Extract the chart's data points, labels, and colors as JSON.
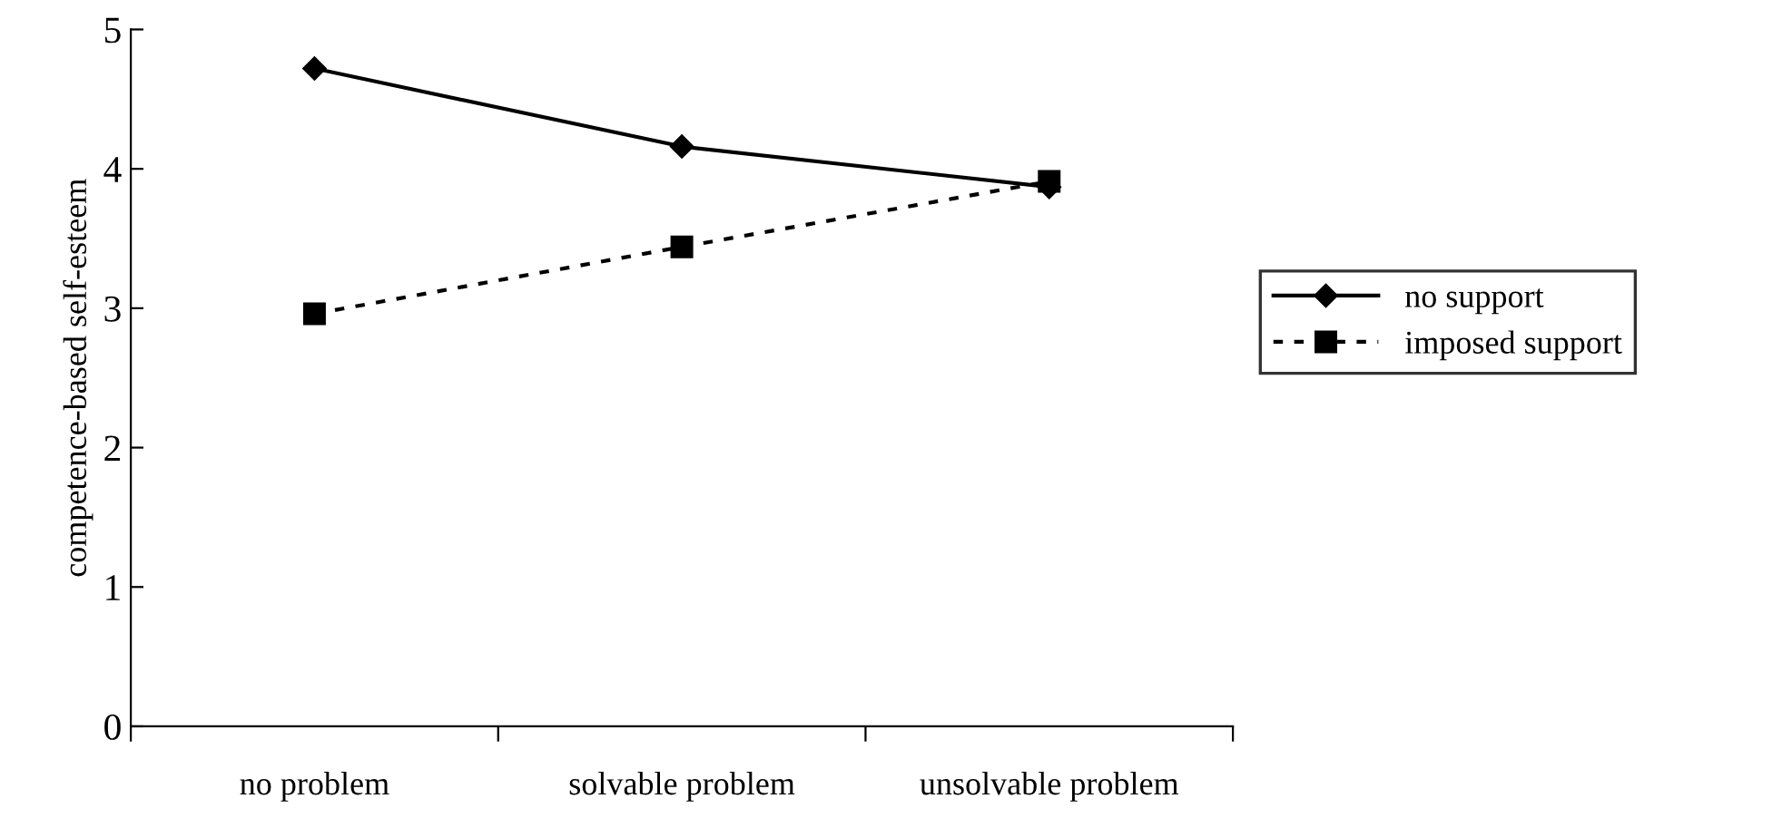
{
  "chart_data": {
    "type": "line",
    "ylabel": "competence-based self-esteem",
    "categories": [
      "no problem",
      "solvable problem",
      "unsolvable problem"
    ],
    "series": [
      {
        "name": "no support",
        "color": "#000000",
        "values": [
          4.72,
          4.16,
          3.87
        ],
        "marker": "diamond",
        "line_style": "solid"
      },
      {
        "name": "imposed support",
        "color": "#000000",
        "values": [
          2.96,
          3.44,
          3.91
        ],
        "marker": "square",
        "line_style": "dotted"
      }
    ],
    "ylim": [
      0,
      5
    ],
    "yticks": [
      0,
      1,
      2,
      3,
      4,
      5
    ],
    "grid": false,
    "legend": "right"
  }
}
